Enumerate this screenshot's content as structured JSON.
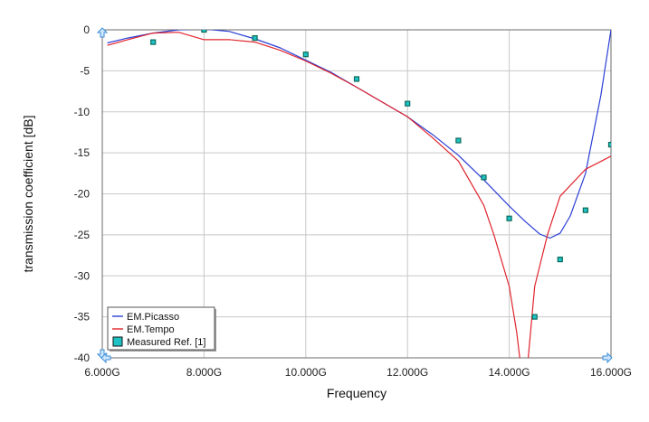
{
  "chart_data": {
    "type": "line",
    "xlabel": "Frequency",
    "ylabel": "transmission coefficient [dB]",
    "xlim": [
      6,
      16
    ],
    "ylim": [
      -40,
      0
    ],
    "x_ticks": [
      6,
      8,
      10,
      12,
      14,
      16
    ],
    "x_tick_labels": [
      "6.000G",
      "8.000G",
      "10.000G",
      "12.000G",
      "14.000G",
      "16.000G"
    ],
    "y_ticks": [
      0,
      -5,
      -10,
      -15,
      -20,
      -25,
      -30,
      -35,
      -40
    ],
    "y_tick_labels": [
      "0",
      "-5",
      "-10",
      "-15",
      "-20",
      "-25",
      "-30",
      "-35",
      "-40"
    ],
    "grid": true,
    "legend_position": "bottom-left",
    "colors": {
      "picasso": "#2b3fd6",
      "tempo": "#e0242c",
      "measured_fill": "#1fc3c6",
      "measured_edge": "#0b6b5a",
      "grid": "#c8c8c8",
      "plot_border": "#6b6b6b"
    },
    "series": [
      {
        "name": "EM.Picasso",
        "kind": "line",
        "x": [
          6.1,
          6.5,
          7.0,
          7.5,
          8.0,
          8.5,
          9.0,
          9.5,
          10.0,
          10.5,
          11.0,
          11.5,
          12.0,
          12.5,
          13.0,
          13.5,
          14.0,
          14.3,
          14.6,
          14.8,
          15.0,
          15.2,
          15.5,
          15.8,
          16.0
        ],
        "y": [
          -1.6,
          -1.0,
          -0.4,
          0.0,
          0.1,
          -0.2,
          -1.1,
          -2.2,
          -3.7,
          -5.2,
          -7.0,
          -8.8,
          -10.6,
          -12.8,
          -15.3,
          -18.3,
          -21.5,
          -23.3,
          -24.9,
          -25.4,
          -24.8,
          -22.7,
          -17.5,
          -8.0,
          0.0
        ]
      },
      {
        "name": "EM.Tempo",
        "kind": "line",
        "x": [
          6.1,
          6.5,
          7.0,
          7.5,
          8.0,
          8.5,
          9.0,
          9.5,
          10.0,
          10.5,
          11.0,
          11.5,
          12.0,
          12.5,
          13.0,
          13.5,
          13.7,
          14.0,
          14.15,
          14.3,
          14.5,
          14.75,
          15.0,
          15.5,
          16.0
        ],
        "y": [
          -1.9,
          -1.2,
          -0.4,
          -0.3,
          -1.2,
          -1.2,
          -1.5,
          -2.5,
          -3.8,
          -5.3,
          -7.0,
          -8.8,
          -10.6,
          -13.2,
          -16.0,
          -21.4,
          -25.0,
          -31.3,
          -37.0,
          -45.0,
          -31.3,
          -25.0,
          -20.3,
          -17.0,
          -15.4
        ]
      },
      {
        "name": "Measured Ref. [1]",
        "kind": "scatter",
        "x": [
          7.0,
          8.0,
          9.0,
          10.0,
          11.0,
          12.0,
          13.0,
          13.5,
          14.0,
          14.5,
          15.0,
          15.5,
          16.0
        ],
        "y": [
          -1.5,
          0.0,
          -1.0,
          -3.0,
          -6.0,
          -9.0,
          -13.5,
          -18.0,
          -23.0,
          -35.0,
          -28.0,
          -22.0,
          -14.0
        ]
      }
    ]
  }
}
